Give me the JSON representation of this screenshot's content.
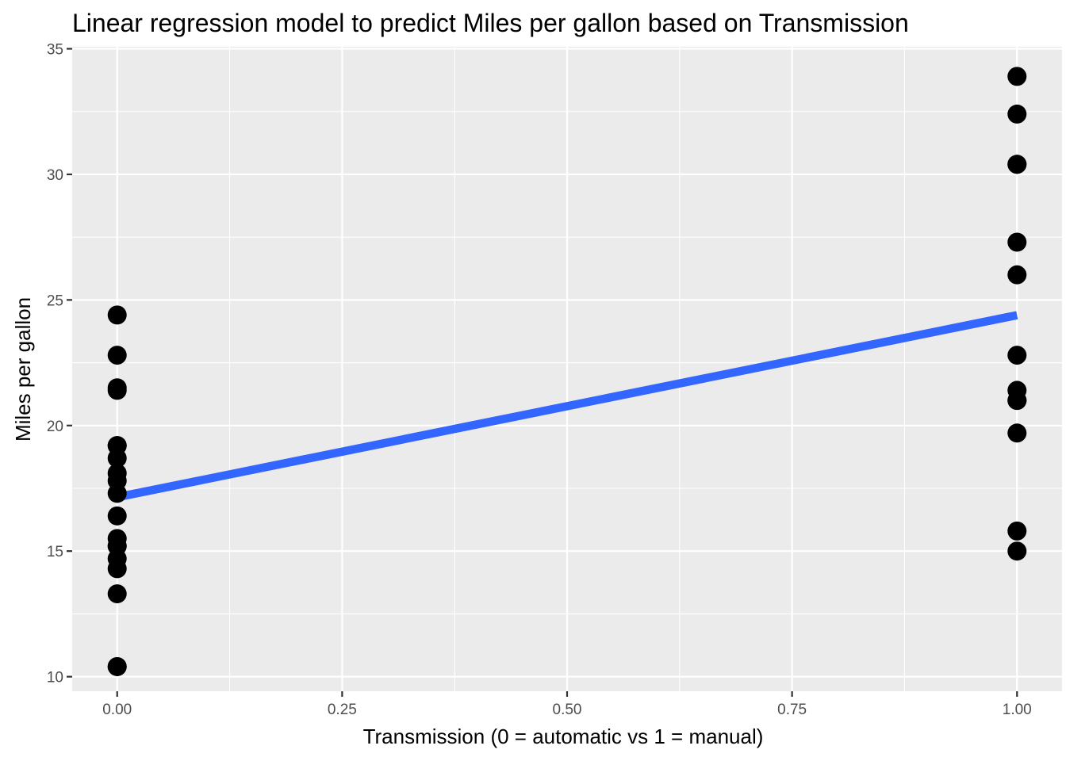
{
  "chart_data": {
    "type": "scatter",
    "title": "Linear regression model to predict Miles per gallon based on Transmission",
    "xlabel": "Transmission (0 = automatic vs 1 = manual)",
    "ylabel": "Miles per gallon",
    "xlim": [
      -0.05,
      1.05
    ],
    "ylim": [
      9.42,
      35.08
    ],
    "x_ticks": [
      0.0,
      0.25,
      0.5,
      0.75,
      1.0
    ],
    "x_tick_labels": [
      "0.00",
      "0.25",
      "0.50",
      "0.75",
      "1.00"
    ],
    "y_ticks": [
      10,
      15,
      20,
      25,
      30,
      35
    ],
    "y_tick_labels": [
      "10",
      "15",
      "20",
      "25",
      "30",
      "35"
    ],
    "grid": true,
    "series": [
      {
        "type": "scatter",
        "x": [
          0,
          0,
          0,
          0,
          0,
          0,
          0,
          0,
          0,
          0,
          0,
          0,
          0,
          0,
          0,
          0,
          0,
          0,
          0,
          1,
          1,
          1,
          1,
          1,
          1,
          1,
          1,
          1,
          1,
          1,
          1,
          1
        ],
        "values": [
          21.4,
          18.7,
          18.1,
          14.3,
          24.4,
          22.8,
          19.2,
          17.8,
          16.4,
          17.3,
          15.2,
          10.4,
          10.4,
          14.7,
          21.5,
          15.5,
          15.2,
          13.3,
          19.2,
          21.0,
          21.0,
          22.8,
          32.4,
          30.4,
          33.9,
          27.3,
          26.0,
          30.4,
          15.8,
          19.7,
          15.0,
          21.4
        ],
        "color": "#000000"
      },
      {
        "type": "line",
        "x": [
          0,
          1
        ],
        "values": [
          17.147,
          24.392
        ],
        "color": "#3366ff"
      }
    ]
  }
}
